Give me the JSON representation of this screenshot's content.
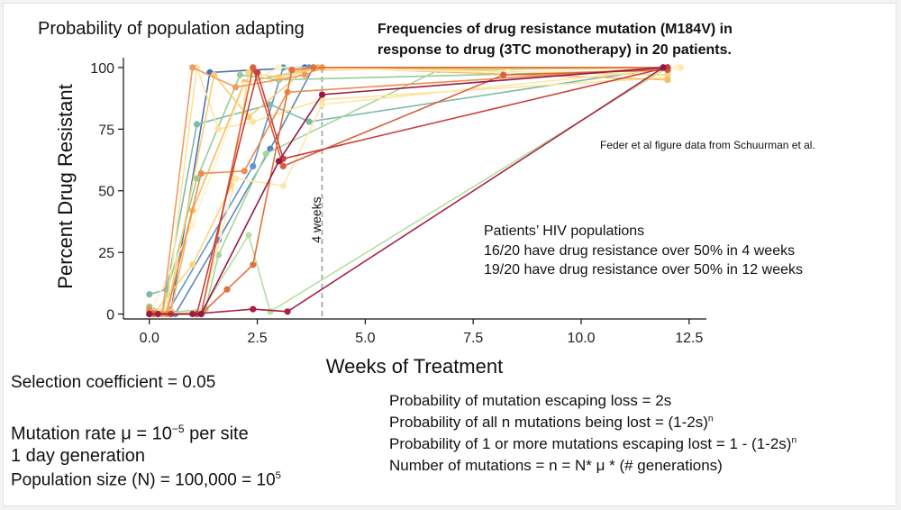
{
  "slide": {
    "left_title": "Probability of population adapting",
    "heading_line1": "Frequencies of drug resistance mutation (M184V) in",
    "heading_line2": "response to drug (3TC monotherapy) in 20 patients.",
    "citation": "Feder et al figure data from Schuurman et al.",
    "annotation_title": "Patients’ HIV populations",
    "annotation_line1": "16/20 have drug resistance over 50% in 4  weeks",
    "annotation_line2": "19/20 have drug resistance over 50% in 12 weeks",
    "vline_label": "4 weeks",
    "selection": "Selection coefficient = 0.05",
    "mutation_rate_prefix": "Mutation rate μ = 10",
    "mutation_rate_exp": "−5",
    "mutation_rate_suffix": " per site",
    "generation": "1 day generation",
    "pop_size_prefix": "Population size (N) = 100,000 = 10",
    "pop_size_exp": "5",
    "formula1": "Probability of mutation escaping loss = 2s",
    "formula2_prefix": "Probability of all n mutations being lost = (1-2s)",
    "formula2_exp": "n",
    "formula3_prefix": "Probability of 1 or more mutations escaping lost = 1 - (1-2s)",
    "formula3_exp": "n",
    "formula4": "Number of mutations = n =  N* μ * (# generations)"
  },
  "chart_data": {
    "type": "line",
    "xlabel": "Weeks of Treatment",
    "ylabel": "Percent Drug Resistant",
    "xlim": [
      -0.6,
      12.9
    ],
    "ylim": [
      -2,
      104
    ],
    "xticks": [
      0.0,
      2.5,
      5.0,
      7.5,
      10.0,
      12.5
    ],
    "xtick_labels": [
      "0.0",
      "2.5",
      "5.0",
      "7.5",
      "10.0",
      "12.5"
    ],
    "yticks": [
      0,
      25,
      50,
      75,
      100
    ],
    "ytick_labels": [
      "0",
      "25",
      "50",
      "75",
      "100"
    ],
    "reference_line": {
      "x": 4.0,
      "style": "dashed",
      "color": "#a8a8a8"
    },
    "series": [
      {
        "color": "#4a72b0",
        "x": [
          0.0,
          0.5,
          1.4,
          2.4,
          3.6,
          12.0
        ],
        "y": [
          0,
          1,
          98,
          99,
          100,
          100
        ]
      },
      {
        "color": "#6196c8",
        "x": [
          0.0,
          0.4,
          2.4,
          3.1,
          3.7,
          12.0
        ],
        "y": [
          0,
          0,
          60,
          100,
          100,
          100
        ]
      },
      {
        "color": "#5d86b8",
        "x": [
          0.2,
          0.6,
          1.6,
          2.8,
          3.8,
          12.0
        ],
        "y": [
          0,
          0,
          30,
          67,
          100,
          100
        ]
      },
      {
        "color": "#7fb9ab",
        "x": [
          0.0,
          0.4,
          1.1,
          2.8,
          3.7,
          12.0
        ],
        "y": [
          8,
          10,
          77,
          85,
          78,
          100
        ]
      },
      {
        "color": "#99cc9a",
        "x": [
          0.0,
          0.3,
          1.1,
          2.1,
          3.0,
          12.0
        ],
        "y": [
          3,
          1,
          55,
          97,
          95,
          99
        ]
      },
      {
        "color": "#b6dfa2",
        "x": [
          0.3,
          1.2,
          2.3,
          2.8,
          12.0
        ],
        "y": [
          0,
          1,
          32,
          1,
          100
        ]
      },
      {
        "color": "#a6d49c",
        "x": [
          0.1,
          1.3,
          1.6,
          2.7,
          6.7,
          12.0
        ],
        "y": [
          0,
          2,
          24,
          65,
          99,
          100
        ]
      },
      {
        "color": "#fbe49a",
        "x": [
          0.0,
          0.4,
          1.1,
          1.6,
          2.4,
          4.0,
          12.0
        ],
        "y": [
          1,
          2,
          100,
          75,
          78,
          87,
          96
        ]
      },
      {
        "color": "#f8d77c",
        "x": [
          0.1,
          1.0,
          1.9,
          2.3,
          3.0,
          4.0,
          12.0
        ],
        "y": [
          0,
          20,
          52,
          98,
          96,
          100,
          97
        ]
      },
      {
        "color": "#f6cf6e",
        "x": [
          0.0,
          0.4,
          1.5,
          2.3,
          3.6,
          12.0
        ],
        "y": [
          0,
          0,
          97,
          80,
          99,
          100
        ]
      },
      {
        "color": "#f3bd65",
        "x": [
          0.0,
          0.5,
          1.0,
          2.2,
          3.9,
          12.0
        ],
        "y": [
          1,
          1,
          42,
          94,
          100,
          95
        ]
      },
      {
        "color": "#fde7ad",
        "x": [
          0.0,
          1.2,
          2.0,
          3.1,
          4.0,
          12.3
        ],
        "y": [
          0,
          1,
          55,
          52,
          85,
          100
        ]
      },
      {
        "color": "#fff1c8",
        "x": [
          0.0,
          1.0,
          2.2,
          3.0,
          8.3,
          12.2
        ],
        "y": [
          0,
          36,
          93,
          100,
          98,
          100
        ]
      },
      {
        "color": "#f39a5e",
        "x": [
          0.0,
          0.3,
          1.0,
          2.0,
          3.6,
          4.0,
          12.0
        ],
        "y": [
          1,
          0,
          100,
          92,
          97,
          100,
          100
        ]
      },
      {
        "color": "#ee8c4e",
        "x": [
          0.0,
          0.4,
          1.2,
          2.2,
          3.2,
          12.0
        ],
        "y": [
          2,
          0,
          57,
          58,
          90,
          100
        ]
      },
      {
        "color": "#e17039",
        "x": [
          0.1,
          0.5,
          1.2,
          1.8,
          2.4,
          3.3,
          3.8,
          12.0
        ],
        "y": [
          0,
          0,
          0,
          10,
          20,
          99,
          100,
          100
        ]
      },
      {
        "color": "#d7603f",
        "x": [
          0.0,
          1.2,
          2.4,
          3.1,
          8.2,
          12.0
        ],
        "y": [
          0,
          0,
          100,
          60,
          97,
          99
        ]
      },
      {
        "color": "#c8413d",
        "x": [
          0.0,
          0.5,
          1.1,
          2.5,
          3.1,
          12.0
        ],
        "y": [
          0,
          0,
          0,
          98,
          63,
          100
        ]
      },
      {
        "color": "#a82145",
        "x": [
          0.2,
          1.0,
          2.4,
          3.2,
          11.9
        ],
        "y": [
          0,
          0,
          2,
          1,
          100
        ]
      },
      {
        "color": "#941a42",
        "x": [
          0.0,
          1.2,
          3.0,
          4.0,
          11.9
        ],
        "y": [
          0,
          0,
          62,
          89,
          100
        ]
      }
    ]
  }
}
